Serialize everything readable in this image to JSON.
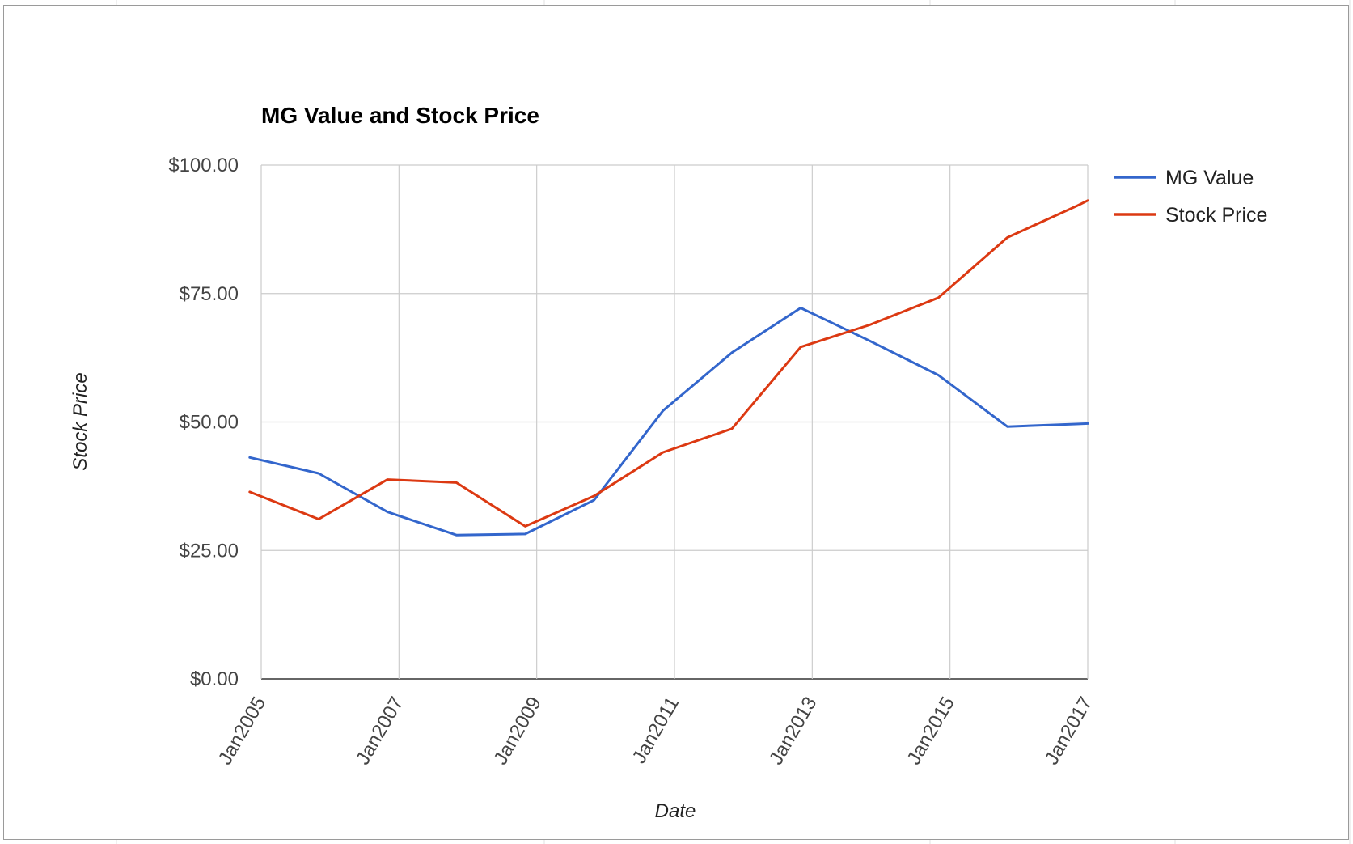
{
  "chart_data": {
    "type": "line",
    "title": "MG Value and Stock Price",
    "xlabel": "Date",
    "ylabel": "Stock Price",
    "ylim": [
      0,
      100
    ],
    "xlim": [
      "2005-01",
      "2017-01"
    ],
    "y_ticks": [
      {
        "value": 0,
        "label": "$0.00"
      },
      {
        "value": 25,
        "label": "$25.00"
      },
      {
        "value": 50,
        "label": "$50.00"
      },
      {
        "value": 75,
        "label": "$75.00"
      },
      {
        "value": 100,
        "label": "$100.00"
      }
    ],
    "x_ticks": [
      {
        "value": "2005-01",
        "label": "Jan2005"
      },
      {
        "value": "2007-01",
        "label": "Jan2007"
      },
      {
        "value": "2009-01",
        "label": "Jan2009"
      },
      {
        "value": "2011-01",
        "label": "Jan2011"
      },
      {
        "value": "2013-01",
        "label": "Jan2013"
      },
      {
        "value": "2015-01",
        "label": "Jan2015"
      },
      {
        "value": "2017-01",
        "label": "Jan2017"
      }
    ],
    "x_grid": [
      "2005-01",
      "2007-01",
      "2009-01",
      "2011-01",
      "2013-01",
      "2015-01",
      "2017-01"
    ],
    "grid": true,
    "legend": "right",
    "x": [
      "2004-11",
      "2005-11",
      "2006-11",
      "2007-11",
      "2008-11",
      "2009-11",
      "2010-11",
      "2011-11",
      "2012-11",
      "2013-11",
      "2014-11",
      "2015-11",
      "2016-11",
      "2017-01"
    ],
    "series": [
      {
        "name": "MG Value",
        "color": "#3366cc",
        "values": [
          43.1,
          40.0,
          32.5,
          28.0,
          28.2,
          34.8,
          52.2,
          63.5,
          72.2,
          65.8,
          59.1,
          49.1,
          49.6,
          49.7
        ]
      },
      {
        "name": "Stock Price",
        "color": "#dc3912",
        "values": [
          36.4,
          31.1,
          38.8,
          38.2,
          29.7,
          35.6,
          44.1,
          48.7,
          64.6,
          68.9,
          74.2,
          85.9,
          92.0,
          93.1
        ]
      }
    ]
  }
}
